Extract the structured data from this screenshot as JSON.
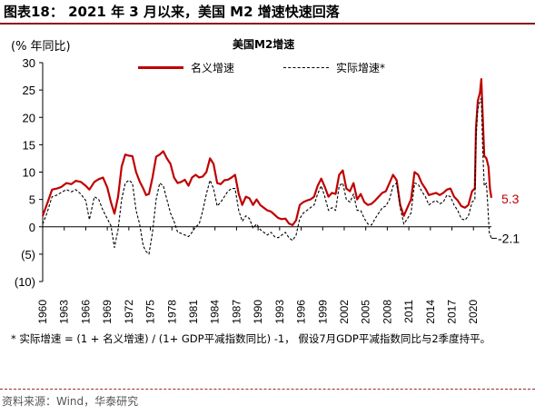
{
  "header": {
    "title": "图表18：  2021 年 3 月以来，美国 M2 增速快速回落"
  },
  "chart_data": {
    "type": "line",
    "title": "美国M2增速",
    "ylabel": "(% 年同比)",
    "ylim": [
      -10,
      30
    ],
    "yticks": [
      -10,
      -5,
      0,
      5,
      10,
      15,
      20,
      25,
      30
    ],
    "ytick_labels": [
      "(10)",
      "(5)",
      "0",
      "5",
      "10",
      "15",
      "20",
      "25",
      "30"
    ],
    "xlim": [
      1960,
      2022.5
    ],
    "xticks": [
      1960,
      1963,
      1966,
      1969,
      1972,
      1975,
      1978,
      1981,
      1984,
      1987,
      1990,
      1993,
      1996,
      1999,
      2002,
      2005,
      2008,
      2011,
      2014,
      2017,
      2020
    ],
    "xtick_labels": [
      "1960",
      "1963",
      "1966",
      "1969",
      "1972",
      "1975",
      "1978",
      "1981",
      "1984",
      "1987",
      "1990",
      "1993",
      "1996",
      "1999",
      "2002",
      "2005",
      "2008",
      "2011",
      "2014",
      "2017",
      "2020"
    ],
    "legend_position": "top",
    "grid": false,
    "series": [
      {
        "name": "名义增速",
        "color": "#c00000",
        "style": "solid",
        "end_label": "5.3",
        "points": [
          [
            1960.0,
            2.0
          ],
          [
            1960.7,
            4.5
          ],
          [
            1961.3,
            6.8
          ],
          [
            1962.0,
            7.0
          ],
          [
            1962.6,
            7.3
          ],
          [
            1963.3,
            8.0
          ],
          [
            1964.0,
            7.8
          ],
          [
            1964.6,
            8.4
          ],
          [
            1965.3,
            8.2
          ],
          [
            1966.0,
            7.5
          ],
          [
            1966.5,
            6.8
          ],
          [
            1967.2,
            8.2
          ],
          [
            1967.8,
            8.7
          ],
          [
            1968.4,
            9.0
          ],
          [
            1969.0,
            7.2
          ],
          [
            1969.5,
            4.5
          ],
          [
            1970.0,
            2.4
          ],
          [
            1970.5,
            5.5
          ],
          [
            1971.0,
            11.0
          ],
          [
            1971.5,
            13.2
          ],
          [
            1972.0,
            13.0
          ],
          [
            1972.5,
            12.9
          ],
          [
            1973.0,
            10.0
          ],
          [
            1973.5,
            8.3
          ],
          [
            1974.0,
            7.0
          ],
          [
            1974.4,
            5.8
          ],
          [
            1974.8,
            6.0
          ],
          [
            1975.3,
            9.0
          ],
          [
            1975.8,
            12.8
          ],
          [
            1976.3,
            13.2
          ],
          [
            1976.8,
            13.8
          ],
          [
            1977.3,
            12.5
          ],
          [
            1977.8,
            11.5
          ],
          [
            1978.3,
            9.0
          ],
          [
            1978.8,
            8.0
          ],
          [
            1979.3,
            8.2
          ],
          [
            1979.8,
            8.6
          ],
          [
            1980.3,
            7.5
          ],
          [
            1980.8,
            9.0
          ],
          [
            1981.3,
            9.5
          ],
          [
            1981.8,
            9.0
          ],
          [
            1982.3,
            9.2
          ],
          [
            1982.8,
            10.0
          ],
          [
            1983.3,
            12.5
          ],
          [
            1983.8,
            11.5
          ],
          [
            1984.3,
            8.0
          ],
          [
            1984.8,
            7.8
          ],
          [
            1985.3,
            8.5
          ],
          [
            1985.8,
            8.6
          ],
          [
            1986.3,
            9.0
          ],
          [
            1986.8,
            9.5
          ],
          [
            1987.3,
            6.0
          ],
          [
            1987.8,
            4.0
          ],
          [
            1988.3,
            5.5
          ],
          [
            1988.8,
            5.2
          ],
          [
            1989.3,
            4.0
          ],
          [
            1989.8,
            5.0
          ],
          [
            1990.3,
            4.0
          ],
          [
            1990.8,
            3.5
          ],
          [
            1991.3,
            3.0
          ],
          [
            1991.8,
            2.8
          ],
          [
            1992.3,
            2.2
          ],
          [
            1992.8,
            1.6
          ],
          [
            1993.3,
            1.4
          ],
          [
            1993.8,
            1.5
          ],
          [
            1994.3,
            0.6
          ],
          [
            1994.8,
            0.3
          ],
          [
            1995.3,
            1.2
          ],
          [
            1995.8,
            4.0
          ],
          [
            1996.3,
            4.5
          ],
          [
            1996.8,
            4.8
          ],
          [
            1997.3,
            5.0
          ],
          [
            1997.8,
            5.5
          ],
          [
            1998.3,
            7.5
          ],
          [
            1998.8,
            8.8
          ],
          [
            1999.3,
            7.3
          ],
          [
            1999.8,
            5.5
          ],
          [
            2000.3,
            6.2
          ],
          [
            2000.8,
            6.0
          ],
          [
            2001.3,
            9.5
          ],
          [
            2001.8,
            10.3
          ],
          [
            2002.3,
            7.0
          ],
          [
            2002.8,
            6.5
          ],
          [
            2003.3,
            8.0
          ],
          [
            2003.8,
            5.0
          ],
          [
            2004.3,
            6.0
          ],
          [
            2004.8,
            4.5
          ],
          [
            2005.3,
            4.0
          ],
          [
            2005.8,
            4.2
          ],
          [
            2006.3,
            4.8
          ],
          [
            2006.8,
            5.5
          ],
          [
            2007.3,
            6.2
          ],
          [
            2007.8,
            6.5
          ],
          [
            2008.3,
            8.0
          ],
          [
            2008.8,
            9.5
          ],
          [
            2009.3,
            8.5
          ],
          [
            2009.8,
            4.0
          ],
          [
            2010.3,
            2.0
          ],
          [
            2010.8,
            3.5
          ],
          [
            2011.3,
            5.0
          ],
          [
            2011.8,
            10.0
          ],
          [
            2012.3,
            9.5
          ],
          [
            2012.8,
            8.0
          ],
          [
            2013.3,
            7.0
          ],
          [
            2013.8,
            5.8
          ],
          [
            2014.3,
            6.0
          ],
          [
            2014.8,
            6.2
          ],
          [
            2015.3,
            5.8
          ],
          [
            2015.8,
            6.2
          ],
          [
            2016.3,
            6.8
          ],
          [
            2016.8,
            7.0
          ],
          [
            2017.3,
            5.5
          ],
          [
            2017.8,
            4.8
          ],
          [
            2018.3,
            3.8
          ],
          [
            2018.8,
            3.5
          ],
          [
            2019.3,
            4.0
          ],
          [
            2019.8,
            6.5
          ],
          [
            2020.2,
            7.0
          ],
          [
            2020.35,
            18.0
          ],
          [
            2020.6,
            23.0
          ],
          [
            2020.9,
            24.5
          ],
          [
            2021.1,
            27.0
          ],
          [
            2021.3,
            20.0
          ],
          [
            2021.5,
            13.0
          ],
          [
            2021.8,
            12.5
          ],
          [
            2022.1,
            11.0
          ],
          [
            2022.3,
            7.0
          ],
          [
            2022.5,
            5.3
          ]
        ]
      },
      {
        "name": "实际增速*",
        "color": "#000000",
        "style": "dashed",
        "end_label": "-2.1",
        "points": [
          [
            1960.0,
            0.5
          ],
          [
            1960.6,
            2.5
          ],
          [
            1961.3,
            5.5
          ],
          [
            1962.0,
            5.8
          ],
          [
            1962.6,
            6.3
          ],
          [
            1963.3,
            6.8
          ],
          [
            1964.0,
            6.4
          ],
          [
            1964.6,
            6.8
          ],
          [
            1965.3,
            6.0
          ],
          [
            1966.0,
            4.8
          ],
          [
            1966.5,
            1.3
          ],
          [
            1967.2,
            5.5
          ],
          [
            1967.8,
            5.0
          ],
          [
            1968.4,
            3.0
          ],
          [
            1969.0,
            1.5
          ],
          [
            1969.5,
            0.2
          ],
          [
            1970.0,
            -3.8
          ],
          [
            1970.5,
            -0.5
          ],
          [
            1971.0,
            5.0
          ],
          [
            1971.5,
            8.0
          ],
          [
            1972.0,
            8.5
          ],
          [
            1972.5,
            8.0
          ],
          [
            1973.0,
            3.0
          ],
          [
            1973.5,
            0.5
          ],
          [
            1974.0,
            -3.5
          ],
          [
            1974.4,
            -4.5
          ],
          [
            1974.8,
            -5.0
          ],
          [
            1975.3,
            -1.0
          ],
          [
            1975.8,
            5.0
          ],
          [
            1976.3,
            8.0
          ],
          [
            1976.8,
            7.5
          ],
          [
            1977.3,
            5.0
          ],
          [
            1977.8,
            2.5
          ],
          [
            1978.3,
            1.0
          ],
          [
            1978.8,
            -1.0
          ],
          [
            1979.3,
            -1.2
          ],
          [
            1979.8,
            -1.5
          ],
          [
            1980.3,
            -1.8
          ],
          [
            1980.8,
            -1.0
          ],
          [
            1981.3,
            0.0
          ],
          [
            1981.8,
            0.5
          ],
          [
            1982.3,
            3.0
          ],
          [
            1982.8,
            6.0
          ],
          [
            1983.3,
            8.5
          ],
          [
            1983.8,
            7.0
          ],
          [
            1984.3,
            3.8
          ],
          [
            1984.8,
            4.5
          ],
          [
            1985.3,
            5.5
          ],
          [
            1985.8,
            6.5
          ],
          [
            1986.3,
            7.0
          ],
          [
            1986.8,
            7.0
          ],
          [
            1987.3,
            3.0
          ],
          [
            1987.8,
            1.0
          ],
          [
            1988.3,
            2.0
          ],
          [
            1988.8,
            1.5
          ],
          [
            1989.3,
            -0.2
          ],
          [
            1989.8,
            0.5
          ],
          [
            1990.3,
            -0.5
          ],
          [
            1990.8,
            -1.0
          ],
          [
            1991.3,
            -1.5
          ],
          [
            1991.8,
            -1.0
          ],
          [
            1992.3,
            -1.8
          ],
          [
            1992.8,
            -2.0
          ],
          [
            1993.3,
            -1.5
          ],
          [
            1993.8,
            -1.0
          ],
          [
            1994.3,
            -2.0
          ],
          [
            1994.8,
            -2.5
          ],
          [
            1995.3,
            -1.5
          ],
          [
            1995.8,
            1.5
          ],
          [
            1996.3,
            2.5
          ],
          [
            1996.8,
            3.0
          ],
          [
            1997.3,
            3.5
          ],
          [
            1997.8,
            4.0
          ],
          [
            1998.3,
            6.0
          ],
          [
            1998.8,
            7.5
          ],
          [
            1999.3,
            5.5
          ],
          [
            1999.8,
            3.0
          ],
          [
            2000.3,
            3.5
          ],
          [
            2000.8,
            3.0
          ],
          [
            2001.3,
            7.5
          ],
          [
            2001.8,
            8.0
          ],
          [
            2002.3,
            5.0
          ],
          [
            2002.8,
            4.5
          ],
          [
            2003.3,
            6.0
          ],
          [
            2003.8,
            3.0
          ],
          [
            2004.3,
            3.0
          ],
          [
            2004.8,
            1.5
          ],
          [
            2005.3,
            0.5
          ],
          [
            2005.8,
            0.3
          ],
          [
            2006.3,
            1.5
          ],
          [
            2006.8,
            2.5
          ],
          [
            2007.3,
            3.5
          ],
          [
            2007.8,
            3.8
          ],
          [
            2008.3,
            5.0
          ],
          [
            2008.8,
            7.5
          ],
          [
            2009.3,
            8.0
          ],
          [
            2009.8,
            3.5
          ],
          [
            2010.3,
            0.5
          ],
          [
            2010.8,
            1.5
          ],
          [
            2011.3,
            2.5
          ],
          [
            2011.8,
            8.0
          ],
          [
            2012.3,
            7.8
          ],
          [
            2012.8,
            6.5
          ],
          [
            2013.3,
            5.5
          ],
          [
            2013.8,
            4.0
          ],
          [
            2014.3,
            4.5
          ],
          [
            2014.8,
            4.8
          ],
          [
            2015.3,
            4.2
          ],
          [
            2015.8,
            4.5
          ],
          [
            2016.3,
            5.8
          ],
          [
            2016.8,
            5.5
          ],
          [
            2017.3,
            4.0
          ],
          [
            2017.8,
            3.0
          ],
          [
            2018.3,
            1.5
          ],
          [
            2018.8,
            1.2
          ],
          [
            2019.3,
            2.0
          ],
          [
            2019.8,
            4.5
          ],
          [
            2020.2,
            5.0
          ],
          [
            2020.35,
            16.0
          ],
          [
            2020.6,
            21.5
          ],
          [
            2020.9,
            23.0
          ],
          [
            2021.1,
            23.5
          ],
          [
            2021.3,
            14.0
          ],
          [
            2021.5,
            7.5
          ],
          [
            2021.8,
            8.0
          ],
          [
            2022.0,
            4.0
          ],
          [
            2022.2,
            -1.0
          ],
          [
            2022.5,
            -2.1
          ]
        ]
      }
    ]
  },
  "legend": {
    "nominal": "名义增速",
    "real": "实际增速*"
  },
  "note": "* 实际增速 = (1 + 名义增速) / (1+ GDP平减指数同比) -1， 假设7月GDP平减指数同比与2季度持平。",
  "source": "资料来源：Wind，华泰研究"
}
